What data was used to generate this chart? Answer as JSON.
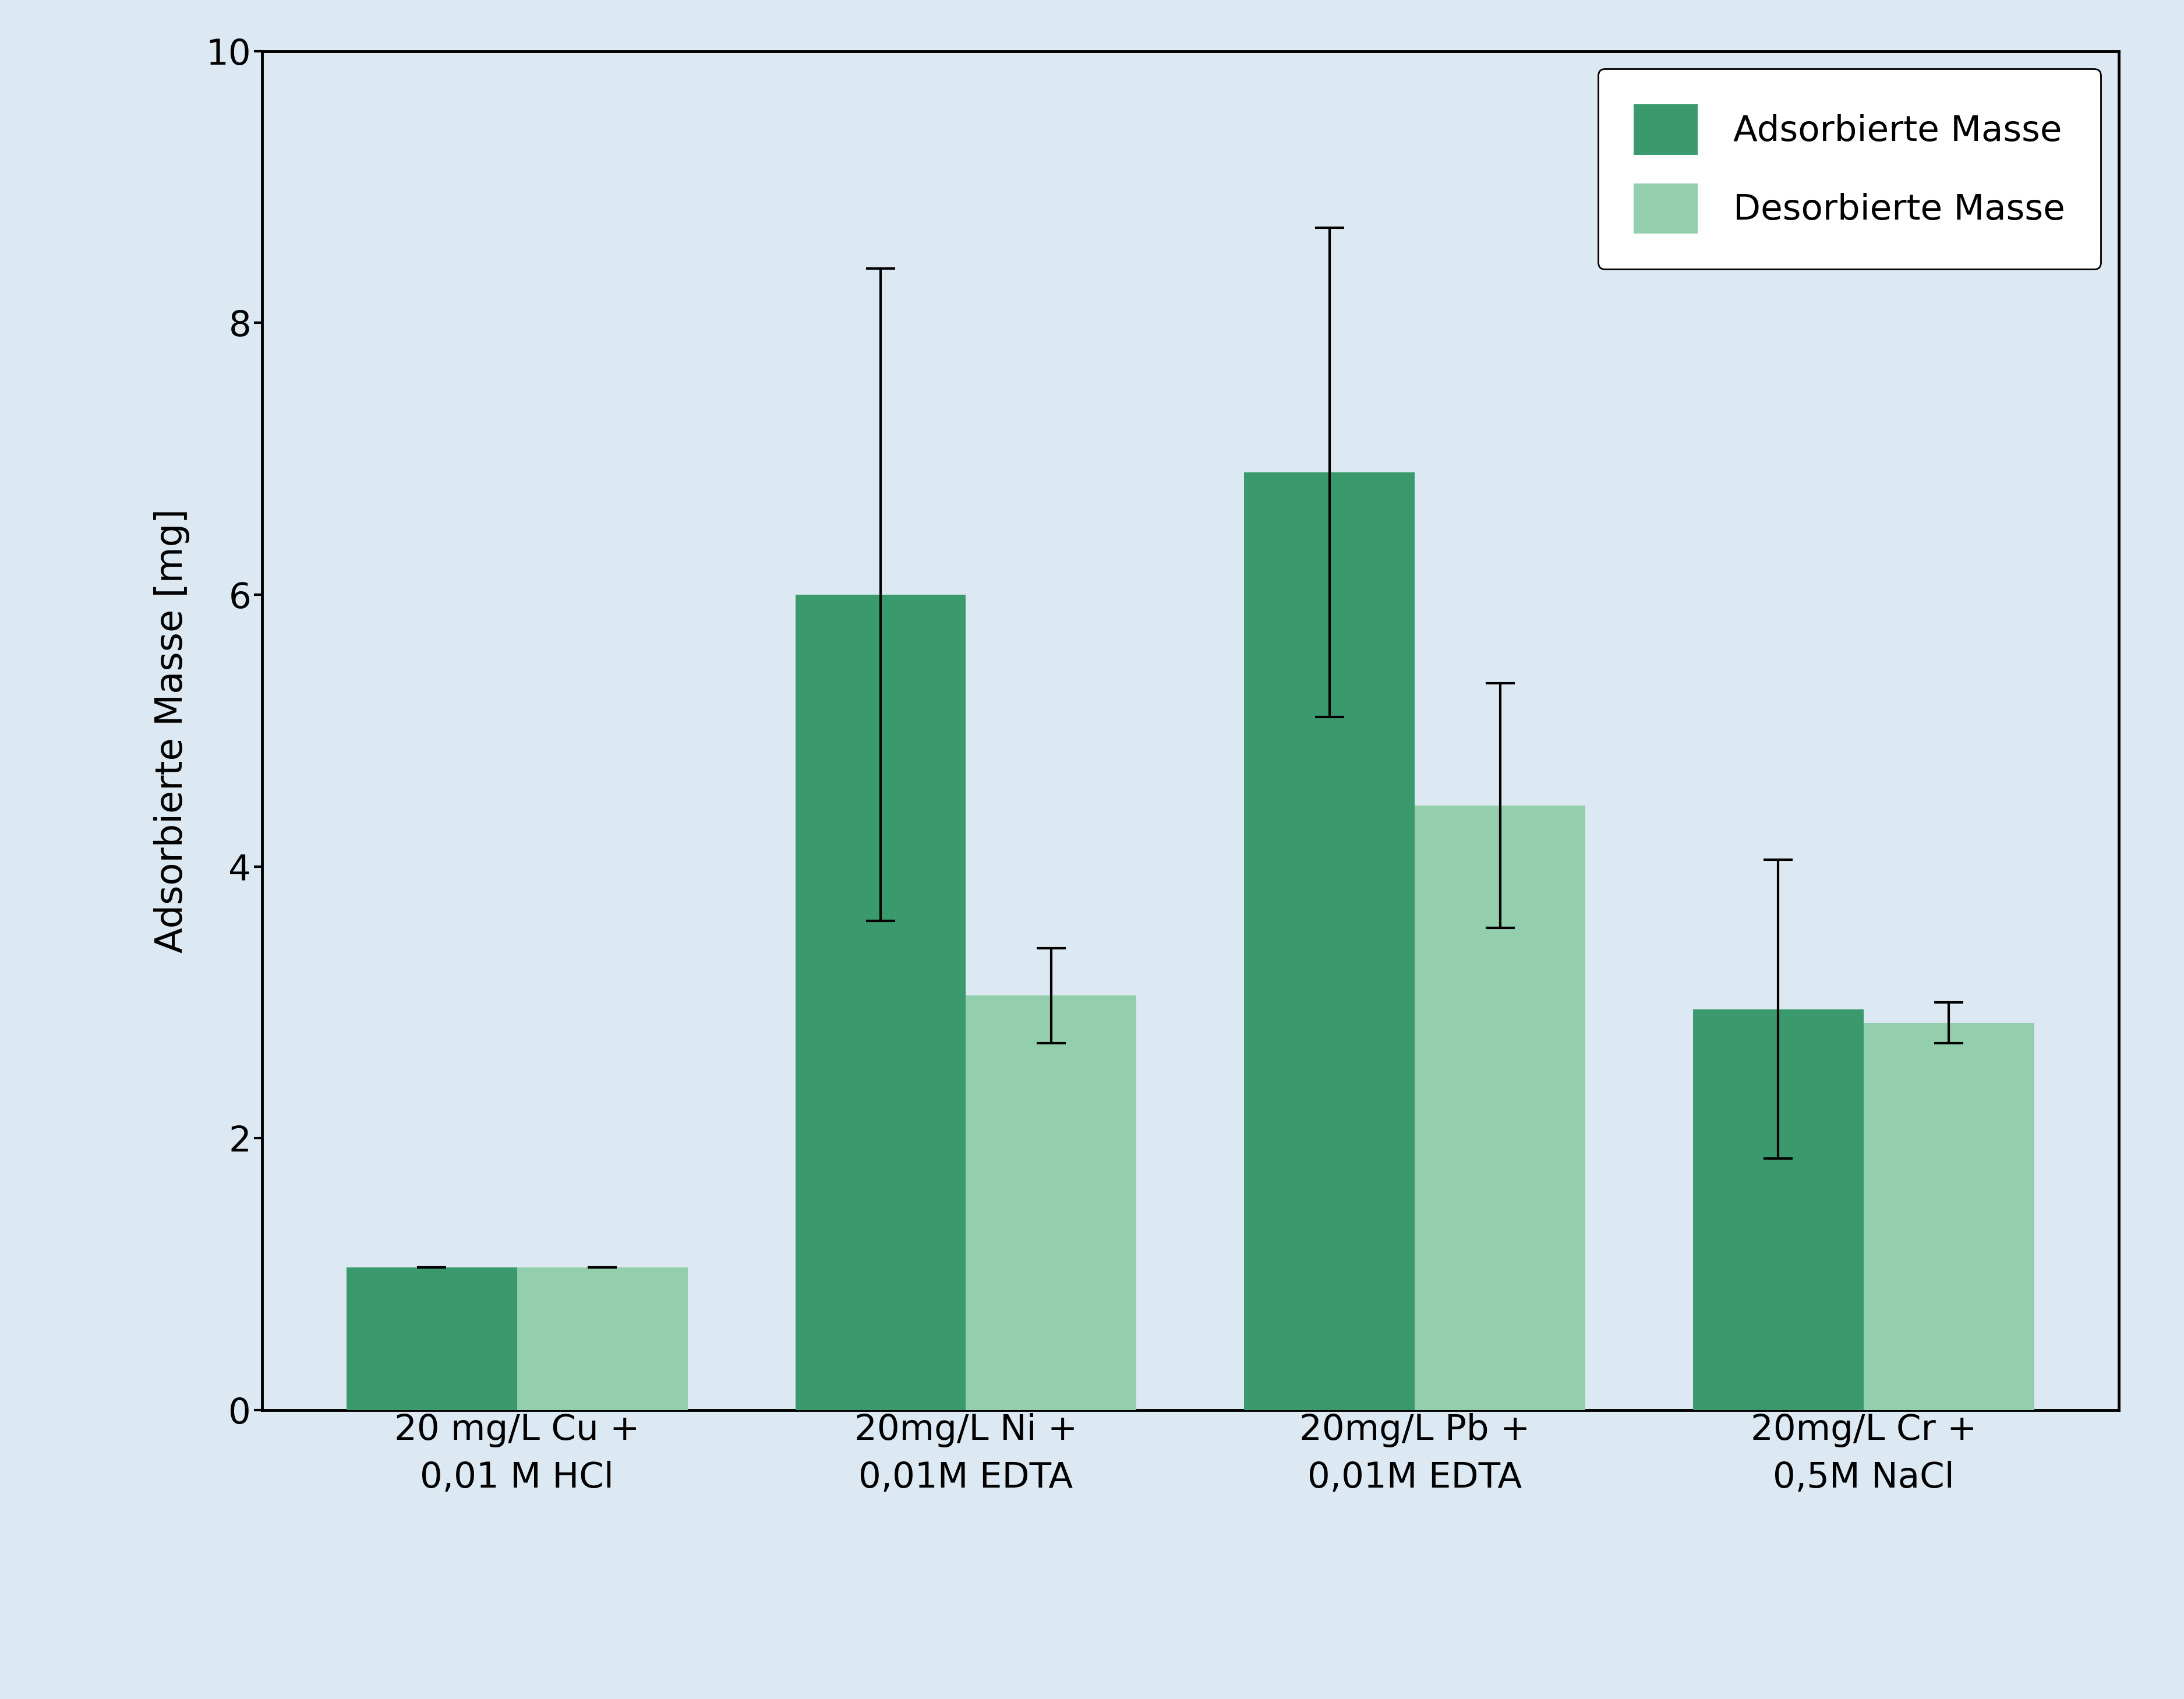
{
  "categories": [
    "20 mg/L Cu +\n0,01 M HCl",
    "20mg/L Ni +\n0,01M EDTA",
    "20mg/L Pb +\n0,01M EDTA",
    "20mg/L Cr +\n0,5M NaCl"
  ],
  "adsorbed_values": [
    1.05,
    6.0,
    6.9,
    2.95
  ],
  "desorbed_values": [
    1.05,
    3.05,
    4.45,
    2.85
  ],
  "adsorbed_errors": [
    0.0,
    2.4,
    1.8,
    1.1
  ],
  "desorbed_errors": [
    0.0,
    0.35,
    0.9,
    0.15
  ],
  "adsorbed_color": "#3a9a6e",
  "desorbed_color": "#93cead",
  "ylabel": "Adsorbierte Masse [mg]",
  "ylim": [
    0,
    10
  ],
  "yticks": [
    0,
    2,
    4,
    6,
    8,
    10
  ],
  "legend_labels": [
    "Adsorbierte Masse",
    "Desorbierte Masse"
  ],
  "bar_width": 0.38,
  "background_color": "#dce9f2",
  "figure_background": "#dce9f2",
  "label_fontsize": 46,
  "tick_fontsize": 44,
  "legend_fontsize": 44
}
